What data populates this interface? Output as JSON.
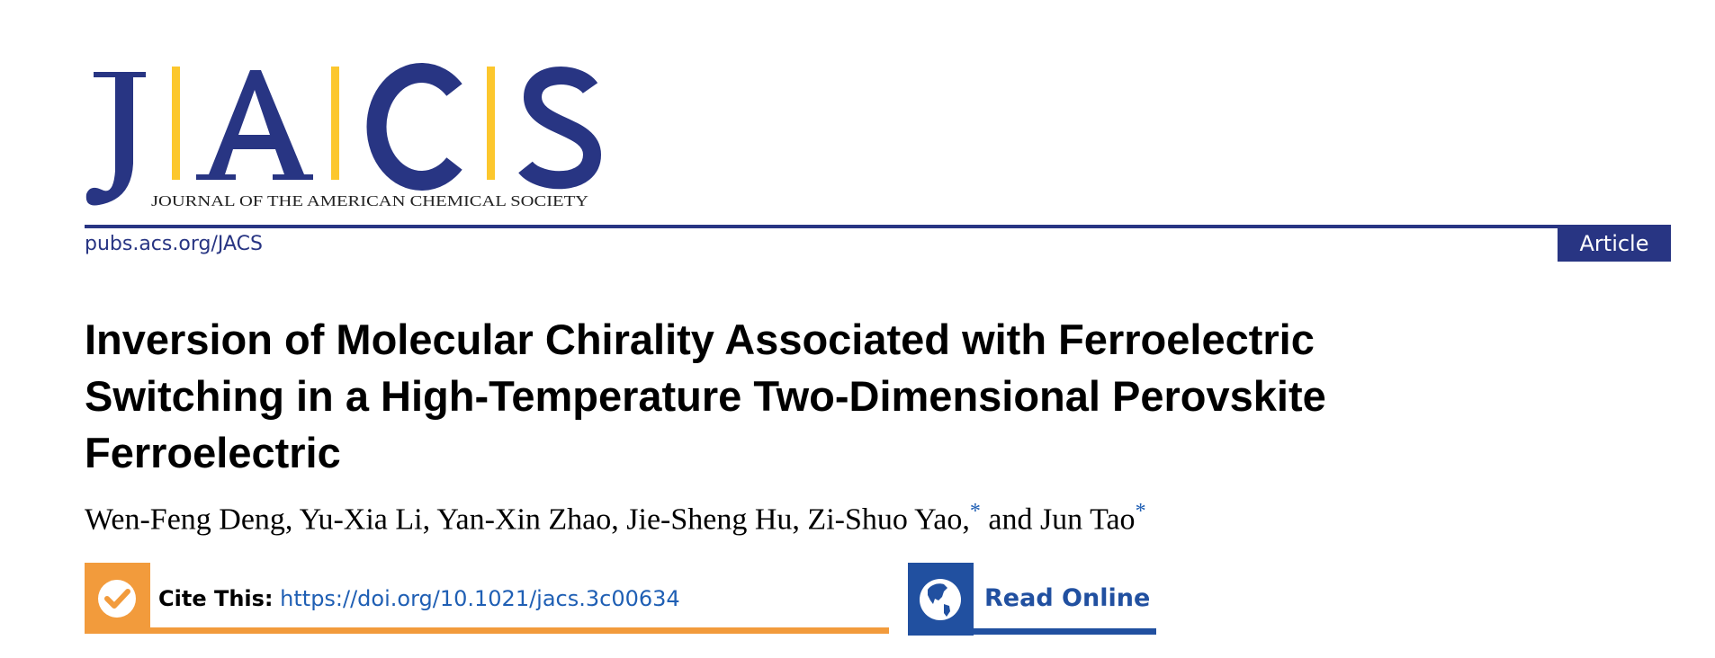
{
  "logo": {
    "letters": [
      "J",
      "A",
      "C",
      "S"
    ],
    "caption": "JOURNAL OF THE AMERICAN CHEMICAL SOCIETY",
    "colors": {
      "letters": "#283583",
      "bars": "#fcc72d"
    }
  },
  "header": {
    "journal_link": "pubs.acs.org/JACS",
    "article_type": "Article",
    "rule_color": "#283583"
  },
  "article": {
    "title_lines": [
      "Inversion of Molecular Chirality Associated with Ferroelectric",
      "Switching in a High-Temperature Two-Dimensional Perovskite",
      "Ferroelectric"
    ],
    "authors": [
      {
        "name": "Wen-Feng Deng, ",
        "corresponding": ""
      },
      {
        "name": "Yu-Xia Li, ",
        "corresponding": ""
      },
      {
        "name": "Yan-Xin Zhao, ",
        "corresponding": ""
      },
      {
        "name": "Jie-Sheng Hu, ",
        "corresponding": ""
      },
      {
        "name": "Zi-Shuo Yao,",
        "corresponding": "*"
      },
      {
        "name": " and Jun Tao",
        "corresponding": "*"
      }
    ]
  },
  "actions": {
    "cite_label": "Cite This:",
    "cite_doi": "https://doi.org/10.1021/jacs.3c00634",
    "cite_icon": "checkmark-icon",
    "cite_color": "#f29b3c",
    "read_online": "Read Online",
    "read_icon": "globe-icon",
    "read_color": "#2150a0"
  }
}
